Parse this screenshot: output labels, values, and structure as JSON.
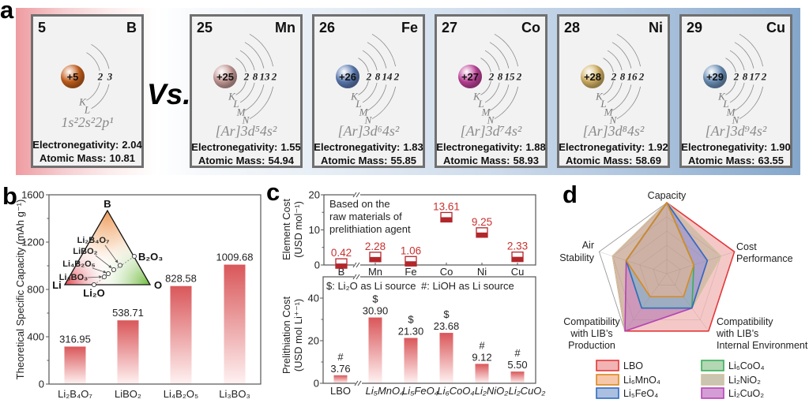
{
  "section_a": {
    "panel_label": "a",
    "vs_label": "Vs.",
    "electronegativity_label": "Electronegativity:",
    "atomic_mass_label": "Atomic Mass:",
    "elements": [
      {
        "number": "5",
        "symbol": "B",
        "nucleus": "+5",
        "shells": [
          "2",
          "3"
        ],
        "shell_names": [
          "K",
          "L"
        ],
        "configuration": "1s²2s²2p¹",
        "electronegativity": "2.04",
        "atomic_mass": "10.81",
        "nucleus_color": "#c9621f"
      },
      {
        "number": "25",
        "symbol": "Mn",
        "nucleus": "+25",
        "shells": [
          "2",
          "8",
          "13",
          "2"
        ],
        "shell_names": [
          "K",
          "L",
          "M",
          "N"
        ],
        "configuration": "[Ar]3d⁵4s²",
        "electronegativity": "1.55",
        "atomic_mass": "54.94",
        "nucleus_color": "#c99d9a"
      },
      {
        "number": "26",
        "symbol": "Fe",
        "nucleus": "+26",
        "shells": [
          "2",
          "8",
          "14",
          "2"
        ],
        "shell_names": [
          "K",
          "L",
          "M",
          "N"
        ],
        "configuration": "[Ar]3d⁶4s²",
        "electronegativity": "1.83",
        "atomic_mass": "55.85",
        "nucleus_color": "#5d7db5"
      },
      {
        "number": "27",
        "symbol": "Co",
        "nucleus": "+27",
        "shells": [
          "2",
          "8",
          "15",
          "2"
        ],
        "shell_names": [
          "K",
          "L",
          "M",
          "N"
        ],
        "configuration": "[Ar]3d⁷4s²",
        "electronegativity": "1.88",
        "atomic_mass": "58.93",
        "nucleus_color": "#c2449c"
      },
      {
        "number": "28",
        "symbol": "Ni",
        "nucleus": "+28",
        "shells": [
          "2",
          "8",
          "16",
          "2"
        ],
        "shell_names": [
          "K",
          "L",
          "M",
          "N"
        ],
        "configuration": "[Ar]3d⁸4s²",
        "electronegativity": "1.92",
        "atomic_mass": "58.69",
        "nucleus_color": "#d6b466"
      },
      {
        "number": "29",
        "symbol": "Cu",
        "nucleus": "+29",
        "shells": [
          "2",
          "8",
          "17",
          "2"
        ],
        "shell_names": [
          "K",
          "L",
          "M",
          "N"
        ],
        "configuration": "[Ar]3d⁹4s²",
        "electronegativity": "1.90",
        "atomic_mass": "63.55",
        "nucleus_color": "#6e93bb"
      }
    ]
  },
  "chart_data": [
    {
      "id": "b",
      "panel_label": "b",
      "type": "bar",
      "title": "",
      "categories": [
        "Li₂B₄O₇",
        "LiBO₂",
        "Li₄B₂O₅",
        "Li₃BO₃"
      ],
      "values": [
        316.95,
        538.71,
        828.58,
        1009.68
      ],
      "value_labels": [
        "316.95",
        "538.71",
        "828.58",
        "1009.68"
      ],
      "xlabel": "",
      "ylabel": "Theoretical Specific Capacity (mAh g⁻¹)",
      "ylim": [
        0,
        1600
      ],
      "yticks": [
        0,
        400,
        800,
        1200,
        1600
      ],
      "grid": false,
      "bar_color": "#d9534f",
      "inset": {
        "type": "ternary",
        "vertices": {
          "top": "B",
          "left": "Li",
          "right": "O"
        },
        "edge_points": {
          "b2o3": "B₂O₃",
          "li2o": "Li₂O"
        },
        "compounds": [
          "Li₂B₄O₇",
          "LiBO₂",
          "Li₄B₂O₅",
          "Li₃BO₃"
        ]
      }
    },
    {
      "id": "c-top",
      "panel_label": "c",
      "type": "scatter",
      "categories": [
        "B",
        "Mn",
        "Fe",
        "Co",
        "Ni",
        "Cu"
      ],
      "values": [
        0.42,
        2.28,
        1.06,
        13.61,
        9.25,
        2.33
      ],
      "value_labels": [
        "0.42",
        "2.28",
        "1.06",
        "13.61",
        "9.25",
        "2.33"
      ],
      "xlabel": "",
      "ylabel": [
        "Element Cost",
        "(USD mol⁻¹)"
      ],
      "ylim": [
        0,
        20
      ],
      "yticks": [
        0,
        10,
        20
      ],
      "annotation": [
        "Based on  the",
        "raw materials of",
        "prelithiation agent"
      ],
      "axis_break": true,
      "marker_color": "#b3262b",
      "label_color": "#c8312f"
    },
    {
      "id": "c-bottom",
      "type": "bar",
      "categories": [
        "LBO",
        "Li₅MnO₄",
        "Li₅FeO₄",
        "Li₆CoO₄",
        "Li₂NiO₂",
        "Li₂CuO₂"
      ],
      "values": [
        3.76,
        30.9,
        21.3,
        23.68,
        9.12,
        5.5
      ],
      "value_labels": [
        "3.76",
        "30.90",
        "21.30",
        "23.68",
        "9.12",
        "5.50"
      ],
      "source_markers": [
        "#",
        "$",
        "$",
        "$",
        "#",
        "#"
      ],
      "xlabel": "",
      "ylabel": [
        "Prelithiation Cost",
        "(USD mol Li⁺⁻¹)"
      ],
      "ylim": [
        0,
        50
      ],
      "yticks": [
        0,
        20,
        40
      ],
      "legend": [
        "$: Li₂O as Li source",
        "#: LiOH as Li source"
      ],
      "legend_position": "top",
      "axis_break": true,
      "bar_color": "#d9534f"
    },
    {
      "id": "d",
      "panel_label": "d",
      "type": "radar",
      "axes": [
        [
          "Capacity"
        ],
        [
          "Cost",
          "Performance"
        ],
        [
          "Compatibility",
          "with LIB’s",
          "Internal Environment"
        ],
        [
          "Compatibility",
          "with LIB’s",
          "Production"
        ],
        [
          "Air",
          "Stability"
        ]
      ],
      "rlim": [
        0,
        5
      ],
      "series": [
        {
          "name": "LBO",
          "values": [
            5,
            5,
            5,
            5,
            4
          ],
          "color": "#e2383a",
          "fill": "#ec9a9a"
        },
        {
          "name": "Li₆MnO₄",
          "values": [
            5,
            2,
            2,
            2,
            3
          ],
          "color": "#d98a1e",
          "fill": "#f4b48c"
        },
        {
          "name": "Li₅FeO₄",
          "values": [
            5,
            3,
            3,
            3,
            3
          ],
          "color": "#2f6cc0",
          "fill": "#8fa9d6"
        },
        {
          "name": "Li₆CoO₄",
          "values": [
            5,
            2,
            3,
            3,
            3
          ],
          "color": "#3aae5a",
          "fill": "#99c99a"
        },
        {
          "name": "Li₂NiO₂",
          "values": [
            5,
            4,
            3,
            5,
            4
          ],
          "color": "#cfc3a0",
          "fill": "#b8b096"
        },
        {
          "name": "Li₂CuO₂",
          "values": [
            5,
            3,
            3,
            5,
            3
          ],
          "color": "#b545b5",
          "fill": "#c77cc7"
        }
      ],
      "legend_position": "bottom"
    }
  ]
}
